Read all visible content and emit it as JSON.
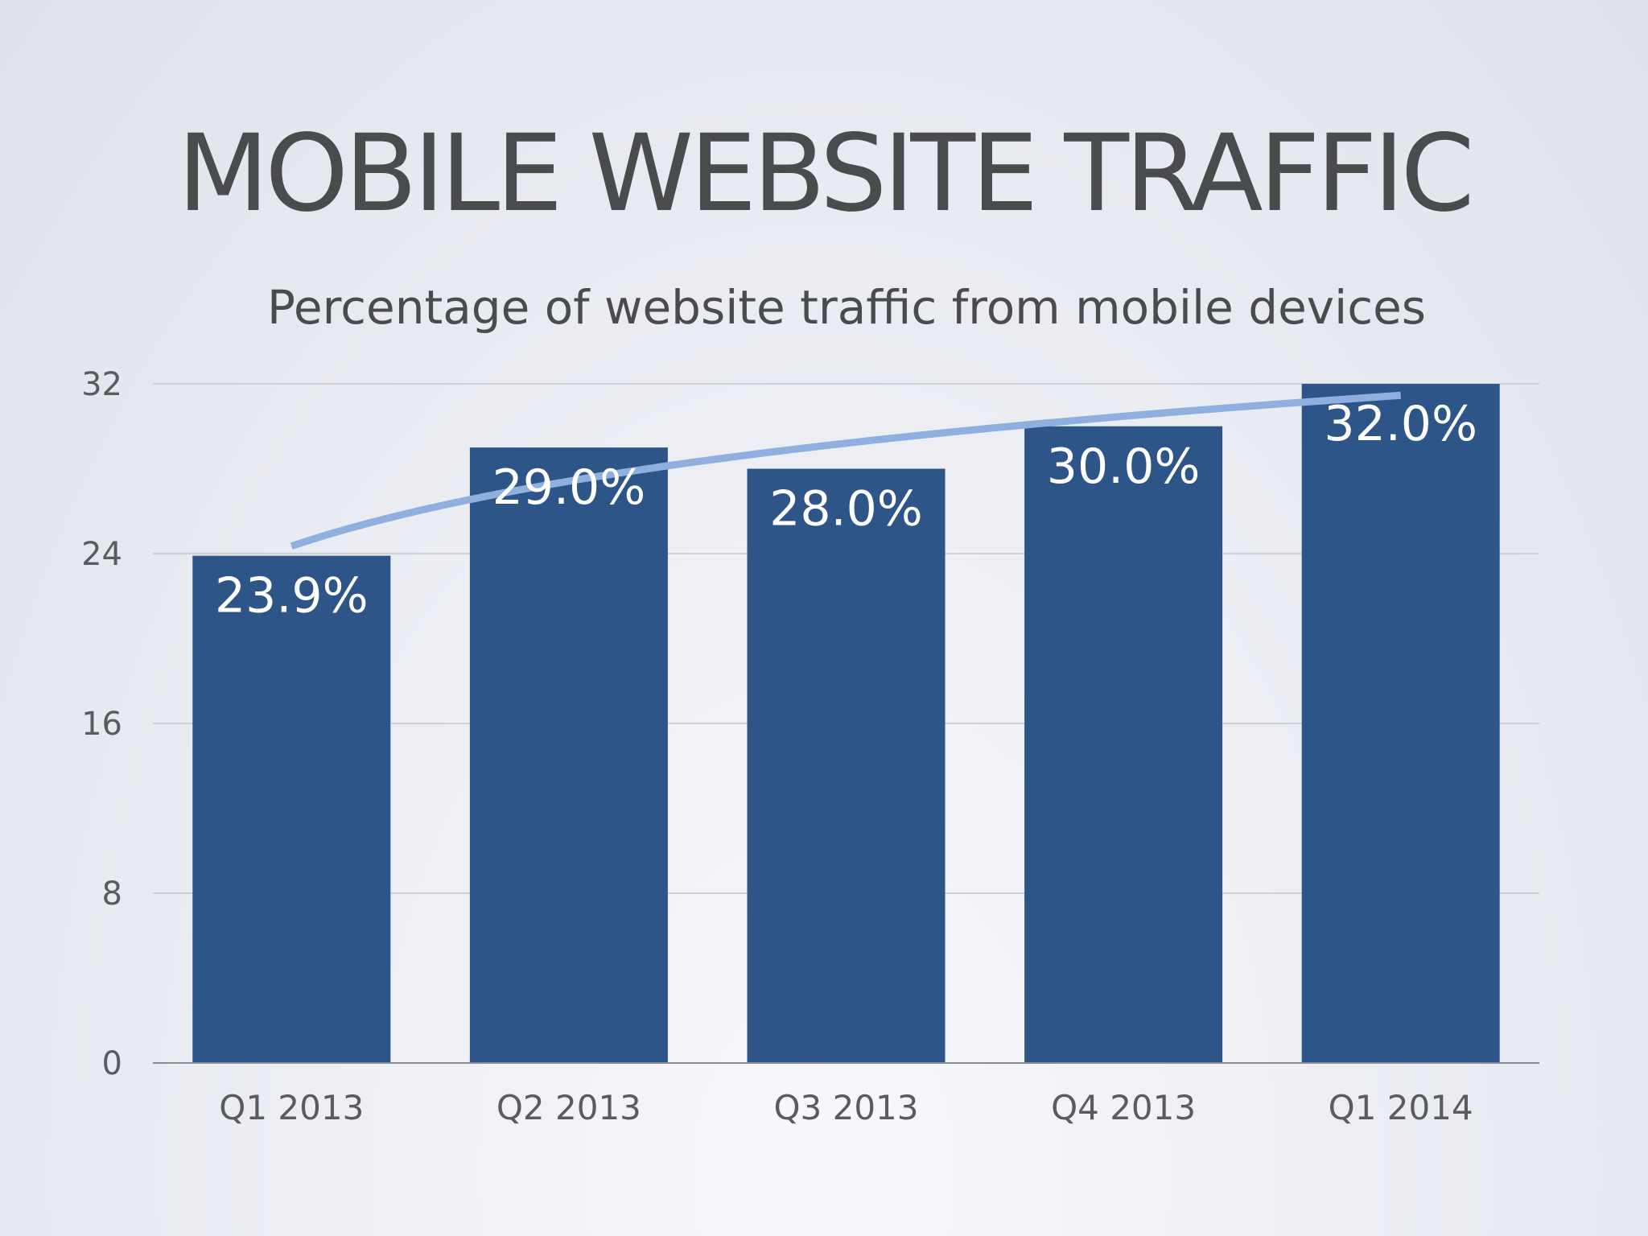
{
  "slide": {
    "title": "MOBILE WEBSITE TRAFFIC"
  },
  "chart_data": {
    "type": "bar",
    "subtitle": "Percentage of website traffic from mobile devices",
    "categories": [
      "Q1 2013",
      "Q2 2013",
      "Q3 2013",
      "Q4 2013",
      "Q1 2014"
    ],
    "values": [
      23.9,
      29.0,
      28.0,
      30.0,
      32.0
    ],
    "data_labels": [
      "23.9%",
      "29.0%",
      "28.0%",
      "30.0%",
      "32.0%"
    ],
    "yticks": [
      0,
      8,
      16,
      24,
      32
    ],
    "ylim": [
      0,
      32
    ],
    "grid": true,
    "trendline": {
      "type": "logarithmic",
      "visible": true
    },
    "colors": {
      "bar": "#2e5588",
      "trendline": "#8fb0de",
      "gridline": "#cfd1d6",
      "axis": "#8a8c90"
    }
  }
}
